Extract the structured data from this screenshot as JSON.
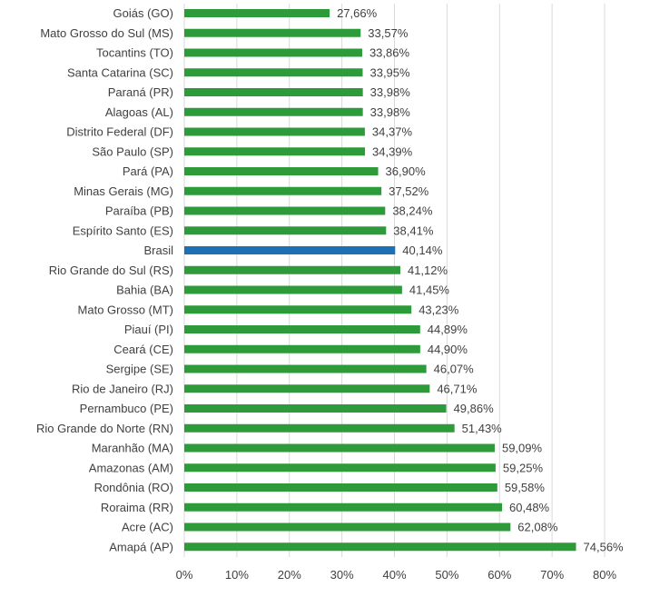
{
  "chart_data": {
    "type": "bar",
    "orientation": "horizontal",
    "categories": [
      "Goiás (GO)",
      "Mato Grosso do Sul (MS)",
      "Tocantins (TO)",
      "Santa Catarina (SC)",
      "Paraná (PR)",
      "Alagoas (AL)",
      "Distrito Federal (DF)",
      "São Paulo (SP)",
      "Pará (PA)",
      "Minas Gerais (MG)",
      "Paraíba (PB)",
      "Espírito Santo (ES)",
      "Brasil",
      "Rio Grande do Sul (RS)",
      "Bahia (BA)",
      "Mato Grosso (MT)",
      "Piauí (PI)",
      "Ceará (CE)",
      "Sergipe (SE)",
      "Rio de Janeiro (RJ)",
      "Pernambuco (PE)",
      "Rio Grande do Norte (RN)",
      "Maranhão (MA)",
      "Amazonas (AM)",
      "Rondônia (RO)",
      "Roraima (RR)",
      "Acre (AC)",
      "Amapá (AP)"
    ],
    "values": [
      27.66,
      33.57,
      33.86,
      33.95,
      33.98,
      33.98,
      34.37,
      34.39,
      36.9,
      37.52,
      38.24,
      38.41,
      40.14,
      41.12,
      41.45,
      43.23,
      44.89,
      44.9,
      46.07,
      46.71,
      49.86,
      51.43,
      59.09,
      59.25,
      59.58,
      60.48,
      62.08,
      74.56
    ],
    "value_labels": [
      "27,66%",
      "33,57%",
      "33,86%",
      "33,95%",
      "33,98%",
      "33,98%",
      "34,37%",
      "34,39%",
      "36,90%",
      "37,52%",
      "38,24%",
      "38,41%",
      "40,14%",
      "41,12%",
      "41,45%",
      "43,23%",
      "44,89%",
      "44,90%",
      "46,07%",
      "46,71%",
      "49,86%",
      "51,43%",
      "59,09%",
      "59,25%",
      "59,58%",
      "60,48%",
      "62,08%",
      "74,56%"
    ],
    "highlight_category": "Brasil",
    "colors": {
      "default": "#2e9b3a",
      "highlight": "#1f6fb5",
      "grid": "#d9d9d9",
      "text": "#404040"
    },
    "xlim": [
      0,
      80
    ],
    "xticks": [
      0,
      10,
      20,
      30,
      40,
      50,
      60,
      70,
      80
    ],
    "xtick_labels": [
      "0%",
      "10%",
      "20%",
      "30%",
      "40%",
      "50%",
      "60%",
      "70%",
      "80%"
    ],
    "grid": true,
    "legend": "none"
  }
}
